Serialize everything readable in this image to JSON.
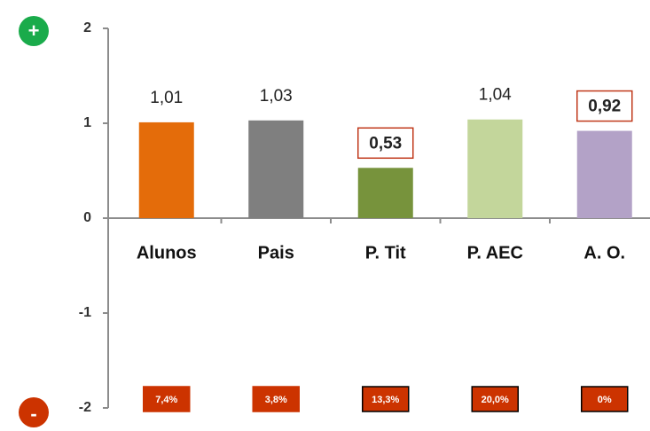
{
  "chart_data": {
    "type": "bar",
    "categories": [
      "Alunos",
      "Pais",
      "P. Tit",
      "P. AEC",
      "A. O."
    ],
    "values": [
      1.01,
      1.03,
      0.53,
      1.04,
      0.92
    ],
    "value_labels": [
      "1,01",
      "1,03",
      "0,53",
      "1,04",
      "0,92"
    ],
    "colors": [
      "#e46c0a",
      "#7f7f7f",
      "#77933c",
      "#c3d69b",
      "#b3a2c7"
    ],
    "highlight": [
      false,
      false,
      true,
      false,
      true
    ],
    "annotations": [
      "7,4%",
      "3,8%",
      "13,3%",
      "20,0%",
      "0%"
    ],
    "annotation_border": [
      false,
      false,
      true,
      true,
      true
    ],
    "top_marker": "+",
    "bottom_marker": "-",
    "ylim": [
      -2,
      2
    ],
    "yticks": [
      -2,
      -1,
      0,
      1,
      2
    ]
  }
}
